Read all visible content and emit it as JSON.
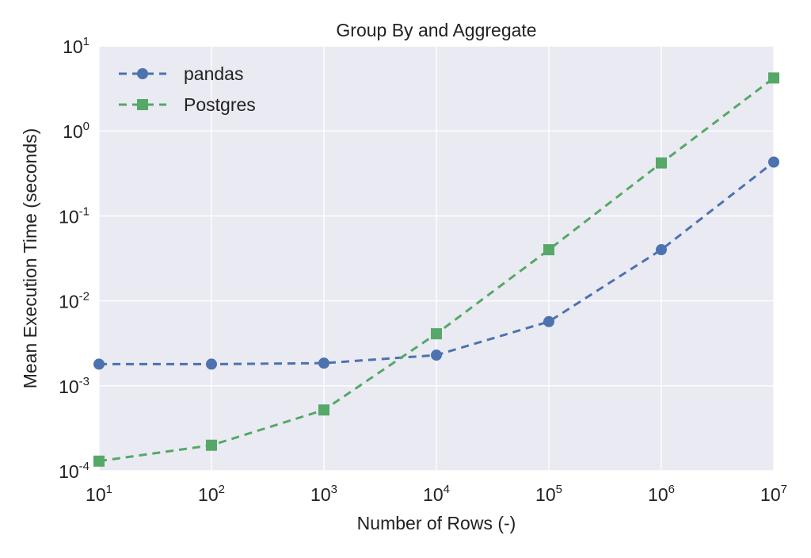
{
  "chart_data": {
    "type": "line",
    "title": "Group By and Aggregate",
    "xlabel": "Number of Rows (-)",
    "ylabel": "Mean Execution Time (seconds)",
    "xscale": "log",
    "yscale": "log",
    "xlim": [
      10,
      10000000
    ],
    "ylim": [
      0.0001,
      10
    ],
    "x": [
      10,
      100,
      1000,
      10000,
      100000,
      1000000,
      10000000
    ],
    "x_ticks": [
      {
        "value": 10,
        "base": "10",
        "exp": "1"
      },
      {
        "value": 100,
        "base": "10",
        "exp": "2"
      },
      {
        "value": 1000,
        "base": "10",
        "exp": "3"
      },
      {
        "value": 10000,
        "base": "10",
        "exp": "4"
      },
      {
        "value": 100000,
        "base": "10",
        "exp": "5"
      },
      {
        "value": 1000000,
        "base": "10",
        "exp": "6"
      },
      {
        "value": 10000000,
        "base": "10",
        "exp": "7"
      }
    ],
    "y_ticks": [
      {
        "value": 0.0001,
        "base": "10",
        "exp": "-4"
      },
      {
        "value": 0.001,
        "base": "10",
        "exp": "-3"
      },
      {
        "value": 0.01,
        "base": "10",
        "exp": "-2"
      },
      {
        "value": 0.1,
        "base": "10",
        "exp": "-1"
      },
      {
        "value": 1,
        "base": "10",
        "exp": "0"
      },
      {
        "value": 10,
        "base": "10",
        "exp": "1"
      }
    ],
    "grid": true,
    "legend_position": "top-left",
    "series": [
      {
        "name": "pandas",
        "color": "#4c72b0",
        "marker": "circle",
        "linestyle": "dashed",
        "values": [
          0.0018,
          0.0018,
          0.00185,
          0.0023,
          0.0057,
          0.04,
          0.43
        ]
      },
      {
        "name": "Postgres",
        "color": "#55a868",
        "marker": "square",
        "linestyle": "dashed",
        "values": [
          0.00013,
          0.0002,
          0.00052,
          0.0041,
          0.04,
          0.42,
          4.2
        ]
      }
    ],
    "background_color": "#eaeaf2",
    "grid_color": "#ffffff"
  }
}
